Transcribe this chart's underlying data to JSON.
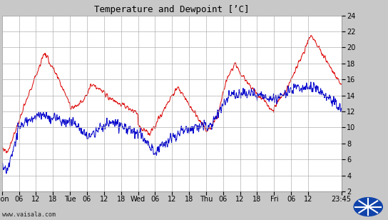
{
  "title": "Temperature and Dewpoint [’C]",
  "xlabel_ticks": [
    "Mon",
    "06",
    "12",
    "18",
    "Tue",
    "06",
    "12",
    "18",
    "Wed",
    "06",
    "12",
    "18",
    "Thu",
    "06",
    "12",
    "18",
    "Fri",
    "06",
    "12",
    "23:45"
  ],
  "yticks": [
    2,
    4,
    6,
    8,
    10,
    12,
    14,
    16,
    18,
    20,
    22,
    24
  ],
  "ylim": [
    2,
    24
  ],
  "background_color": "#c8c8c8",
  "plot_bg_color": "#ffffff",
  "grid_color": "#b0b0b0",
  "temp_color": "#dd0000",
  "dewpoint_color": "#0000cc",
  "title_fontsize": 9,
  "tick_fontsize": 7,
  "watermark": "www.vaisala.com",
  "watermark_fontsize": 6,
  "total_hours": 119.75,
  "tick_hours": [
    0,
    6,
    12,
    18,
    24,
    30,
    36,
    42,
    48,
    54,
    60,
    66,
    72,
    78,
    84,
    90,
    96,
    102,
    108,
    119.75
  ]
}
